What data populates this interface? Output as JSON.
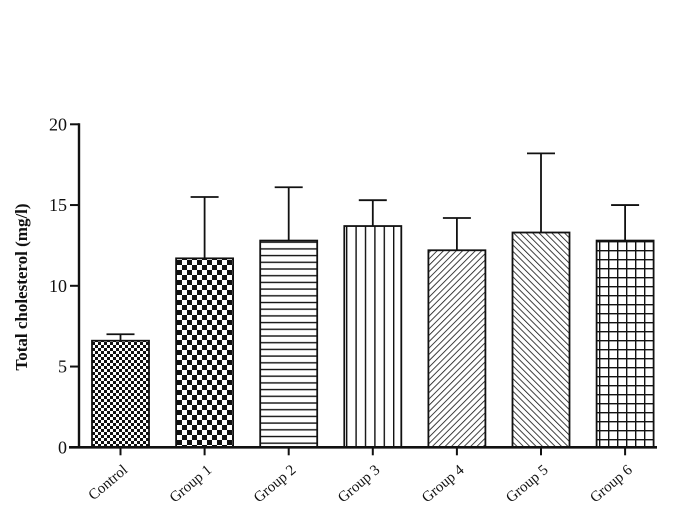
{
  "chart_data": {
    "type": "bar",
    "title": "",
    "xlabel": "",
    "ylabel": "Total cholesterol (mg/l)",
    "ylim": [
      0,
      20
    ],
    "yticks": [
      0,
      5,
      10,
      15,
      20
    ],
    "grid": false,
    "categories": [
      "Control",
      "Group 1",
      "Group 2",
      "Group 3",
      "Group 4",
      "Group 5",
      "Group 6"
    ],
    "values": [
      6.6,
      11.7,
      12.8,
      13.7,
      12.2,
      13.3,
      12.8
    ],
    "error_upper": [
      7.0,
      15.5,
      16.1,
      15.3,
      14.2,
      18.2,
      15.0
    ],
    "patterns": [
      "fine-checker",
      "checker",
      "horizontal-lines",
      "vertical-lines",
      "diagonal-up",
      "diagonal-down",
      "grid"
    ]
  }
}
